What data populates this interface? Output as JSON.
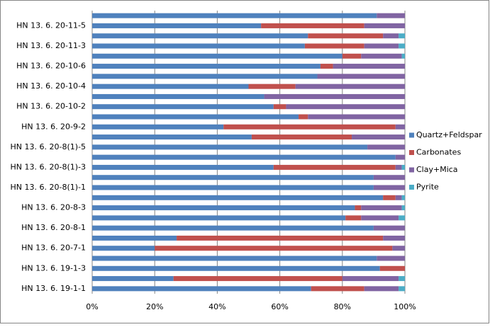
{
  "chart_data": {
    "type": "stacked-bar-horizontal",
    "categories": [
      null,
      "HN 13. 6. 20-11-5",
      null,
      "HN 13. 6. 20-11-3",
      null,
      "HN 13. 6. 20-10-6",
      null,
      "HN 13. 6. 20-10-4",
      null,
      "HN 13. 6. 20-10-2",
      null,
      "HN 13. 6. 20-9-2",
      null,
      "HN 13. 6. 20-8(1)-5",
      null,
      "HN 13. 6. 20-8(1)-3",
      null,
      "HN 13. 6. 20-8(1)-1",
      null,
      "HN 13. 6. 20-8-3",
      null,
      "HN 13. 6. 20-8-1",
      null,
      "HN 13. 6. 20-7-1",
      null,
      "HN 13. 6. 19-1-3",
      null,
      "HN 13. 6. 19-1-1"
    ],
    "series": [
      {
        "name": "Quartz+Feldspar",
        "color": "#4f81bd",
        "values": [
          91,
          54,
          69,
          68,
          80,
          73,
          72,
          50,
          55,
          58,
          66,
          42,
          51,
          88,
          97,
          58,
          90,
          90,
          93,
          84,
          81,
          90,
          27,
          20,
          91,
          92,
          26,
          70
        ]
      },
      {
        "name": "Carbonates",
        "color": "#c0504d",
        "values": [
          0,
          33,
          24,
          19,
          6,
          4,
          0,
          15,
          0,
          4,
          3,
          55,
          32,
          0,
          0,
          39,
          0,
          0,
          4,
          2,
          5,
          0,
          66,
          76,
          0,
          8,
          54,
          17
        ]
      },
      {
        "name": "Clay+Mica",
        "color": "#8064a2",
        "values": [
          9,
          13,
          5,
          11,
          13,
          23,
          28,
          35,
          45,
          38,
          31,
          3,
          17,
          12,
          3,
          2,
          10,
          10,
          2,
          13,
          12,
          10,
          7,
          4,
          9,
          0,
          18,
          11
        ]
      },
      {
        "name": "Pyrite",
        "color": "#4bacc6",
        "values": [
          0,
          0,
          2,
          2,
          1,
          0,
          0,
          0,
          0,
          0,
          0,
          0,
          0,
          0,
          0,
          1,
          0,
          0,
          1,
          1,
          2,
          0,
          0,
          0,
          0,
          0,
          2,
          2
        ]
      }
    ],
    "xlim": [
      0,
      100
    ],
    "xticks": [
      {
        "value": 0,
        "label": "0%"
      },
      {
        "value": 20,
        "label": "20%"
      },
      {
        "value": 40,
        "label": "40%"
      },
      {
        "value": 60,
        "label": "60%"
      },
      {
        "value": 80,
        "label": "80%"
      },
      {
        "value": 100,
        "label": "100%"
      }
    ],
    "grid": true,
    "legend": "right"
  }
}
